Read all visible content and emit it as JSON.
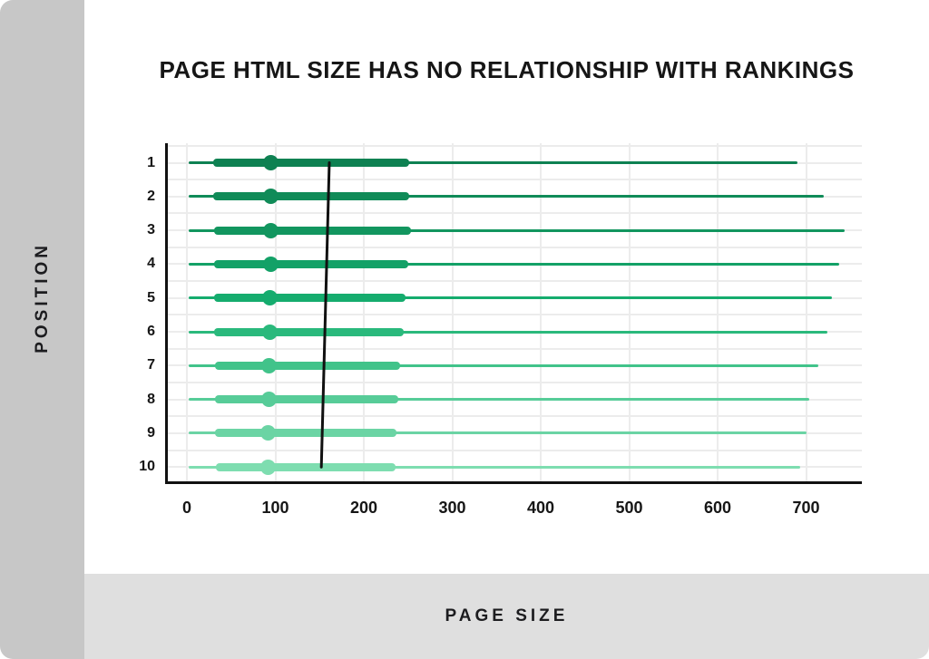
{
  "page": {
    "title": "PAGE HTML SIZE HAS NO RELATIONSHIP WITH RANKINGS",
    "y_axis_title": "POSITION",
    "x_axis_title": "PAGE SIZE"
  },
  "colors": {
    "left_strip": "#c7c7c7",
    "bottom_band": "#dfdfdf",
    "gridline": "#ececec",
    "axis_spine": "#111111",
    "median_line": "#111111",
    "text": "#161616"
  },
  "chart_data": {
    "type": "box",
    "orientation": "horizontal",
    "title": "PAGE HTML SIZE HAS NO RELATIONSHIP WITH RANKINGS",
    "xlabel": "PAGE SIZE",
    "ylabel": "POSITION",
    "grid": true,
    "legend": false,
    "xlim": [
      0,
      766
    ],
    "x_ticks": [
      0,
      100,
      200,
      300,
      400,
      500,
      600,
      700
    ],
    "y_categories": [
      "1",
      "2",
      "3",
      "4",
      "5",
      "6",
      "7",
      "8",
      "9",
      "10"
    ],
    "median_line_color": "#111111",
    "rows": [
      {
        "position": "1",
        "whisker_min": 2,
        "q1": 30,
        "mean": 95,
        "median": 161,
        "q3": 251,
        "whisker_max": 690,
        "color": "#0e8152"
      },
      {
        "position": "2",
        "whisker_min": 2,
        "q1": 30,
        "mean": 95,
        "median": 160,
        "q3": 251,
        "whisker_max": 720,
        "color": "#108b58"
      },
      {
        "position": "3",
        "whisker_min": 2,
        "q1": 31,
        "mean": 95,
        "median": 159,
        "q3": 253,
        "whisker_max": 744,
        "color": "#12965f"
      },
      {
        "position": "4",
        "whisker_min": 2,
        "q1": 31,
        "mean": 95,
        "median": 158,
        "q3": 250,
        "whisker_max": 737,
        "color": "#13a167"
      },
      {
        "position": "5",
        "whisker_min": 2,
        "q1": 31,
        "mean": 94,
        "median": 157,
        "q3": 247,
        "whisker_max": 729,
        "color": "#15ac6e"
      },
      {
        "position": "6",
        "whisker_min": 2,
        "q1": 31,
        "mean": 94,
        "median": 156,
        "q3": 245,
        "whisker_max": 724,
        "color": "#2ab97c"
      },
      {
        "position": "7",
        "whisker_min": 2,
        "q1": 32,
        "mean": 93,
        "median": 155,
        "q3": 241,
        "whisker_max": 714,
        "color": "#41c38a"
      },
      {
        "position": "8",
        "whisker_min": 2,
        "q1": 32,
        "mean": 93,
        "median": 154,
        "q3": 239,
        "whisker_max": 704,
        "color": "#57cc98"
      },
      {
        "position": "9",
        "whisker_min": 2,
        "q1": 32,
        "mean": 92,
        "median": 153,
        "q3": 237,
        "whisker_max": 701,
        "color": "#6bd4a4"
      },
      {
        "position": "10",
        "whisker_min": 2,
        "q1": 33,
        "mean": 92,
        "median": 152,
        "q3": 236,
        "whisker_max": 693,
        "color": "#7eddb0"
      }
    ]
  }
}
